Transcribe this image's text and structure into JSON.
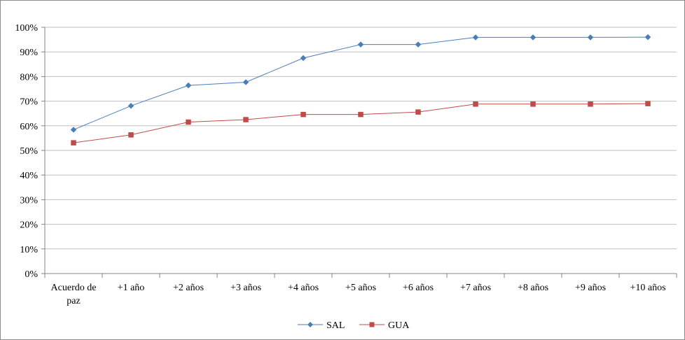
{
  "chart_data": {
    "type": "line",
    "title": "",
    "xlabel": "",
    "ylabel": "",
    "categories": [
      "Acuerdo de paz",
      "+1 año",
      "+2 años",
      "+3 años",
      "+4 años",
      "+5 años",
      "+6 años",
      "+7 años",
      "+8 años",
      "+9 años",
      "+10 años"
    ],
    "y_tick_labels": [
      "0%",
      "10%",
      "20%",
      "30%",
      "40%",
      "50%",
      "60%",
      "70%",
      "80%",
      "90%",
      "100%"
    ],
    "ylim": [
      0,
      100
    ],
    "grid": true,
    "legend_position": "bottom",
    "series": [
      {
        "name": "SAL",
        "color": "#4a7ebb",
        "marker": "diamond",
        "values": [
          58.4,
          68.1,
          76.4,
          77.7,
          87.5,
          93.0,
          93.0,
          95.9,
          95.9,
          95.9,
          96.0
        ]
      },
      {
        "name": "GUA",
        "color": "#be4b48",
        "marker": "square",
        "values": [
          53.1,
          56.3,
          61.5,
          62.5,
          64.6,
          64.6,
          65.6,
          68.8,
          68.8,
          68.8,
          69.0
        ]
      }
    ]
  }
}
